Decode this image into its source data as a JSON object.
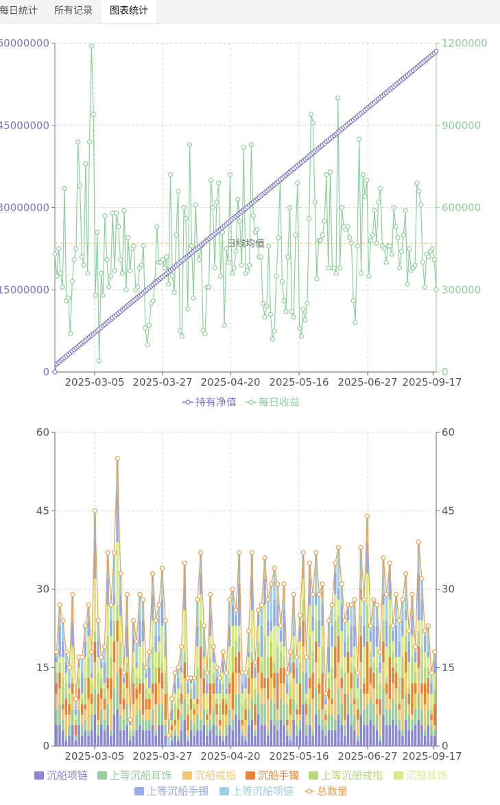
{
  "tabs": [
    {
      "label": "每日统计",
      "active": false
    },
    {
      "label": "所有记录",
      "active": false
    },
    {
      "label": "图表统计",
      "active": true
    }
  ],
  "chart_data": [
    {
      "type": "line",
      "x_tick_labels": [
        "2025-03-05",
        "2025-03-27",
        "2025-04-20",
        "2025-05-16",
        "2025-06-27",
        "2025-09-17"
      ],
      "left_axis": {
        "ticks": [
          "60000000",
          "45000000",
          "30000000",
          "15000000",
          "0"
        ],
        "ylim": [
          0,
          60000000
        ],
        "color": "#7b78c8"
      },
      "right_axis": {
        "ticks": [
          "1200000",
          "900000",
          "600000",
          "300000",
          "0"
        ],
        "ylim": [
          0,
          1200000
        ],
        "color": "#8fce9a"
      },
      "mark_line": {
        "label": "日线均值",
        "value": 470000,
        "color": "#f0c060"
      },
      "series": [
        {
          "name": "持有净值",
          "axis": "left",
          "color": "#7b78c8",
          "start": 0,
          "end": 58500000
        },
        {
          "name": "每日收益",
          "axis": "right",
          "color": "#8fce9a",
          "values": [
            430000,
            350000,
            450000,
            360000,
            310000,
            670000,
            260000,
            270000,
            140000,
            330000,
            410000,
            450000,
            840000,
            680000,
            420000,
            390000,
            760000,
            360000,
            840000,
            1190000,
            940000,
            280000,
            510000,
            40000,
            360000,
            280000,
            570000,
            410000,
            310000,
            350000,
            580000,
            370000,
            580000,
            530000,
            410000,
            360000,
            590000,
            300000,
            490000,
            370000,
            450000,
            460000,
            300000,
            310000,
            380000,
            390000,
            460000,
            160000,
            100000,
            170000,
            250000,
            260000,
            330000,
            530000,
            400000,
            400000,
            410000,
            380000,
            420000,
            320000,
            720000,
            350000,
            290000,
            500000,
            660000,
            150000,
            130000,
            600000,
            560000,
            230000,
            830000,
            460000,
            270000,
            610000,
            450000,
            410000,
            460000,
            150000,
            140000,
            310000,
            310000,
            700000,
            600000,
            380000,
            620000,
            690000,
            350000,
            510000,
            170000,
            450000,
            400000,
            720000,
            360000,
            380000,
            440000,
            630000,
            550000,
            390000,
            820000,
            360000,
            370000,
            390000,
            830000,
            570000,
            510000,
            520000,
            420000,
            420000,
            250000,
            200000,
            240000,
            460000,
            210000,
            120000,
            150000,
            350000,
            490000,
            700000,
            330000,
            260000,
            220000,
            420000,
            600000,
            220000,
            200000,
            500000,
            690000,
            160000,
            130000,
            230000,
            190000,
            250000,
            560000,
            940000,
            910000,
            620000,
            340000,
            480000,
            480000,
            500000,
            550000,
            720000,
            380000,
            730000,
            380000,
            380000,
            360000,
            1000000,
            380000,
            600000,
            530000,
            520000,
            530000,
            490000,
            470000,
            260000,
            180000,
            460000,
            850000,
            360000,
            720000,
            640000,
            700000,
            350000,
            480000,
            500000,
            590000,
            470000,
            620000,
            670000,
            460000,
            450000,
            400000,
            460000,
            460000,
            430000,
            600000,
            530000,
            490000,
            380000,
            440000,
            500000,
            590000,
            320000,
            450000,
            370000,
            380000,
            390000,
            690000,
            660000,
            610000,
            400000,
            310000,
            430000,
            420000,
            440000,
            450000,
            410000,
            300000
          ]
        }
      ],
      "legend": [
        "持有净值",
        "每日收益"
      ]
    },
    {
      "type": "bar",
      "stacked": true,
      "x_tick_labels": [
        "2025-03-05",
        "2025-03-27",
        "2025-04-20",
        "2025-05-16",
        "2025-06-27",
        "2025-09-17"
      ],
      "left_axis": {
        "ticks": [
          "60",
          "45",
          "30",
          "15",
          "0"
        ],
        "ylim": [
          0,
          60
        ]
      },
      "right_axis": {
        "ticks": [
          "60",
          "45",
          "30",
          "15",
          "0"
        ],
        "ylim": [
          0,
          60
        ]
      },
      "series": [
        {
          "name": "沉船项链",
          "color": "#8a87d6"
        },
        {
          "name": "上等沉船耳饰",
          "color": "#96cc9e"
        },
        {
          "name": "沉船戒指",
          "color": "#f3c66b"
        },
        {
          "name": "沉船手镯",
          "color": "#e98232"
        },
        {
          "name": "上等沉船戒指",
          "color": "#b6d97a"
        },
        {
          "name": "沉船耳饰",
          "color": "#d8ec84"
        },
        {
          "name": "上等沉船手镯",
          "color": "#93abe6"
        },
        {
          "name": "上等沉船项链",
          "color": "#9dd1e3"
        },
        {
          "name": "总数量",
          "color": "#e8a050",
          "type": "line",
          "values": [
            18,
            27,
            24,
            18,
            15,
            29,
            9,
            17,
            17,
            23,
            27,
            18,
            45,
            24,
            17,
            19,
            37,
            27,
            37,
            55,
            33,
            14,
            29,
            5,
            24,
            20,
            29,
            28,
            15,
            18,
            33,
            24,
            27,
            34,
            24,
            2,
            9,
            14,
            15,
            19,
            35,
            13,
            13,
            13,
            28,
            37,
            23,
            14,
            29,
            19,
            15,
            13,
            18,
            14,
            28,
            30,
            26,
            37,
            14,
            14,
            22,
            37,
            16,
            26,
            27,
            36,
            28,
            31,
            34,
            31,
            23,
            31,
            14,
            18,
            29,
            17,
            25,
            37,
            17,
            35,
            29,
            37,
            29,
            31,
            10,
            24,
            27,
            35,
            38,
            31,
            24,
            27,
            27,
            28,
            14,
            38,
            28,
            44,
            23,
            28,
            27,
            18,
            36,
            29,
            35,
            23,
            29,
            24,
            28,
            33,
            22,
            29,
            19,
            39,
            32,
            22,
            23,
            14,
            18
          ]
        }
      ],
      "legend": [
        "沉船项链",
        "上等沉船耳饰",
        "沉船戒指",
        "沉船手镯",
        "上等沉船戒指",
        "沉船耳饰",
        "上等沉船手镯",
        "上等沉船项链",
        "总数量"
      ]
    }
  ]
}
